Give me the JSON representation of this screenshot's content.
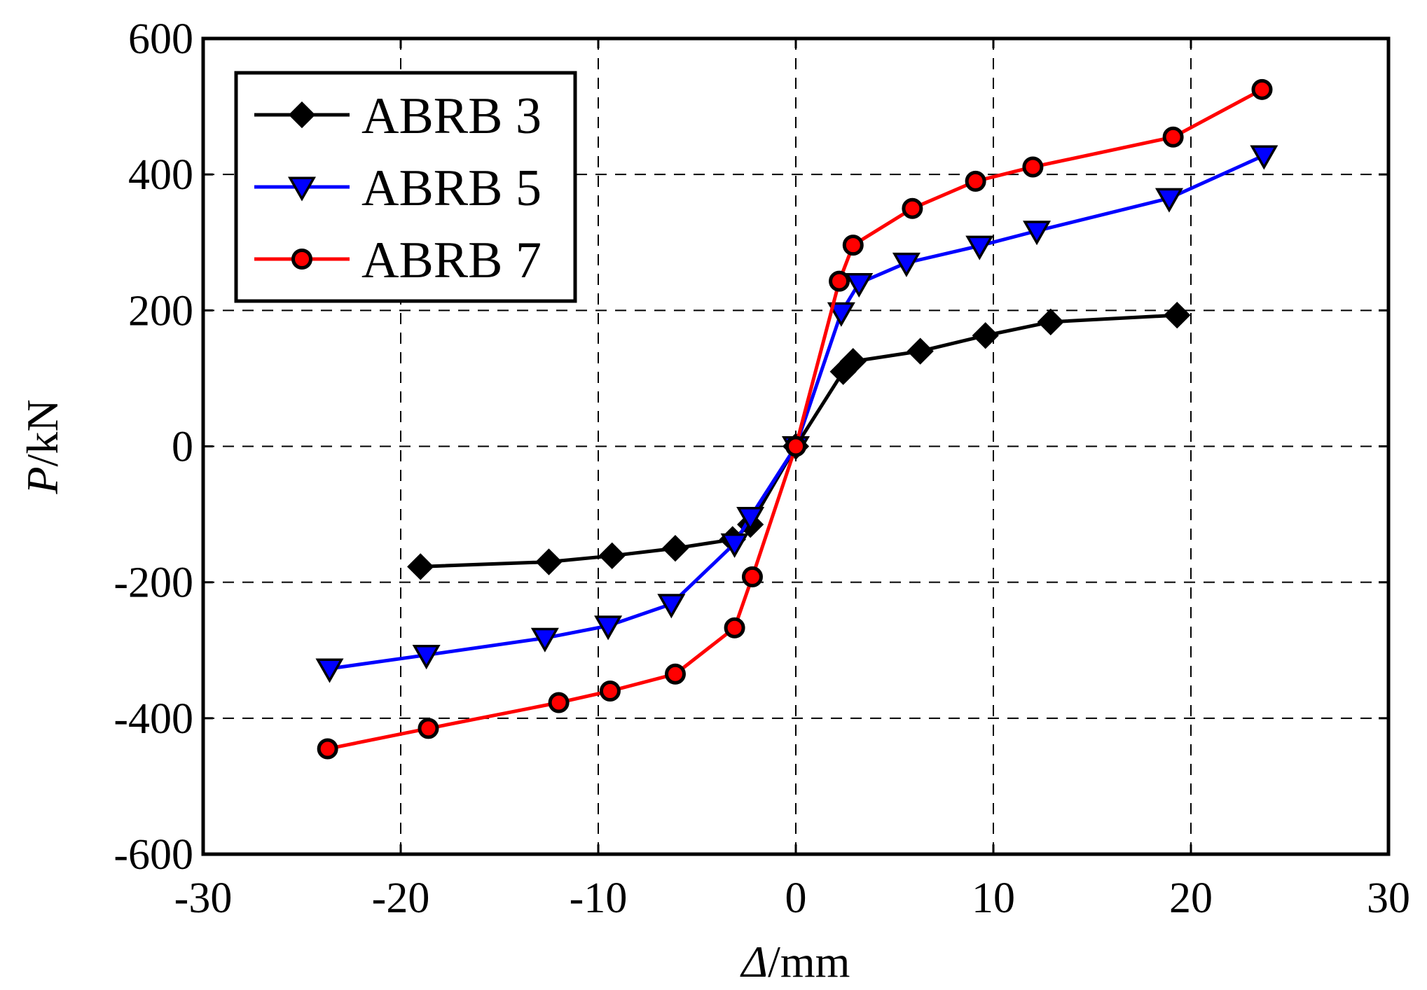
{
  "chart_data": {
    "type": "line",
    "title": "",
    "xlabel": {
      "symbol": "Δ",
      "unit": "/mm"
    },
    "ylabel": {
      "symbol": "P",
      "unit": "/kN"
    },
    "xlim": [
      -30,
      30
    ],
    "ylim": [
      -600,
      600
    ],
    "xticks": [
      -30,
      -20,
      -10,
      0,
      10,
      20,
      30
    ],
    "yticks": [
      -600,
      -400,
      -200,
      0,
      200,
      400,
      600
    ],
    "grid": true,
    "legend_position": "top-left",
    "series": [
      {
        "name": "ABRB 3",
        "color": "#000000",
        "marker": "diamond",
        "marker_fill": "#000000",
        "x": [
          -19,
          -12.5,
          -9.3,
          -6.1,
          -3.2,
          -2.3,
          0,
          2.4,
          2.9,
          6.3,
          9.6,
          12.9,
          19.3
        ],
        "y": [
          -177,
          -170,
          -161,
          -150,
          -137,
          -115,
          0,
          110,
          125,
          140,
          163,
          183,
          193
        ]
      },
      {
        "name": "ABRB 5",
        "color": "#0000ff",
        "marker": "triangle-down",
        "marker_fill": "#0000ff",
        "x": [
          -23.6,
          -18.7,
          -12.7,
          -9.5,
          -6.3,
          -3.1,
          -2.3,
          0,
          2.3,
          3.2,
          5.6,
          9.3,
          12.2,
          18.9,
          23.7
        ],
        "y": [
          -327,
          -307,
          -282,
          -264,
          -232,
          -143,
          -104,
          0,
          197,
          240,
          270,
          295,
          317,
          365,
          428
        ]
      },
      {
        "name": "ABRB 7",
        "color": "#ff0000",
        "marker": "circle",
        "marker_fill": "#ff0000",
        "x": [
          -23.7,
          -18.6,
          -12,
          -9.4,
          -6.1,
          -3.1,
          -2.2,
          0,
          2.2,
          2.9,
          5.9,
          9.1,
          12,
          19.1,
          23.6
        ],
        "y": [
          -445,
          -415,
          -377,
          -360,
          -335,
          -267,
          -192,
          0,
          243,
          296,
          350,
          390,
          411,
          455,
          525
        ]
      }
    ]
  }
}
